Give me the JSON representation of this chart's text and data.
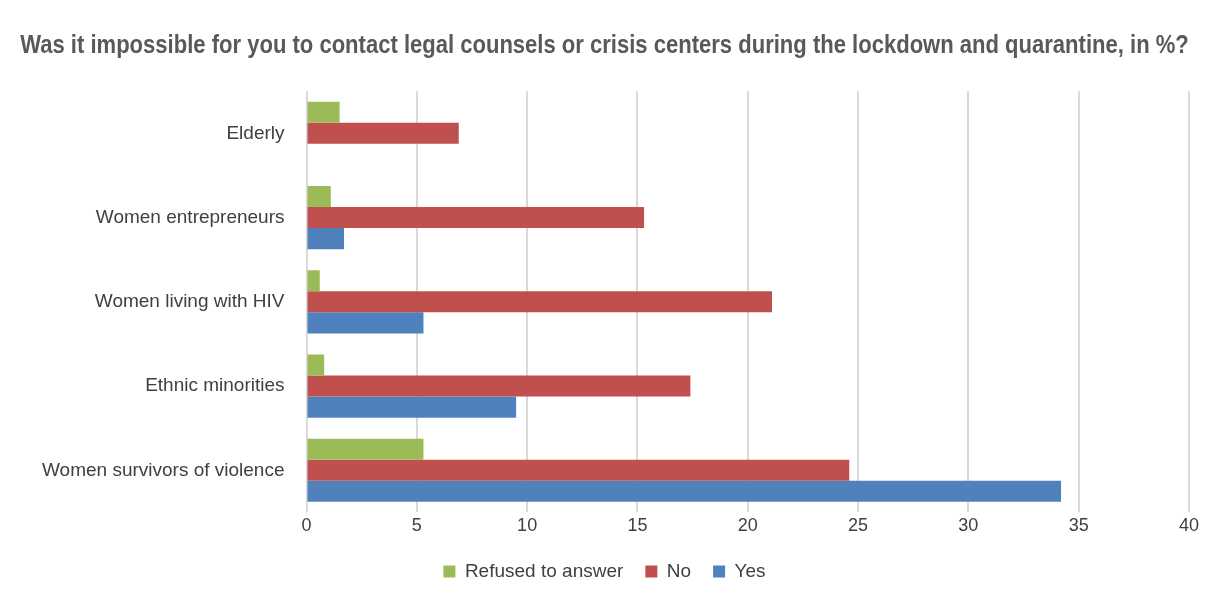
{
  "chart_data": {
    "type": "bar",
    "orientation": "horizontal",
    "title": "Was it impossible for you to contact legal counsels or crisis centers during the lockdown and quarantine, in %?",
    "categories": [
      "Elderly",
      "Women entrepreneurs",
      "Women living with HIV",
      "Ethnic minorities",
      "Women survivors of violence"
    ],
    "series": [
      {
        "name": "Refused to answer",
        "color": "#9bbb59",
        "values": [
          1.5,
          1.1,
          0.6,
          0.8,
          5.3
        ]
      },
      {
        "name": "No",
        "color": "#c0504d",
        "values": [
          6.9,
          15.3,
          21.1,
          17.4,
          24.6
        ]
      },
      {
        "name": "Yes",
        "color": "#4f81bd",
        "values": [
          null,
          1.7,
          5.3,
          9.5,
          34.2
        ]
      }
    ],
    "xlim": [
      0,
      40
    ],
    "xticks": [
      0,
      5,
      10,
      15,
      20,
      25,
      30,
      35,
      40
    ],
    "grid": "x",
    "legend": "bottom"
  }
}
